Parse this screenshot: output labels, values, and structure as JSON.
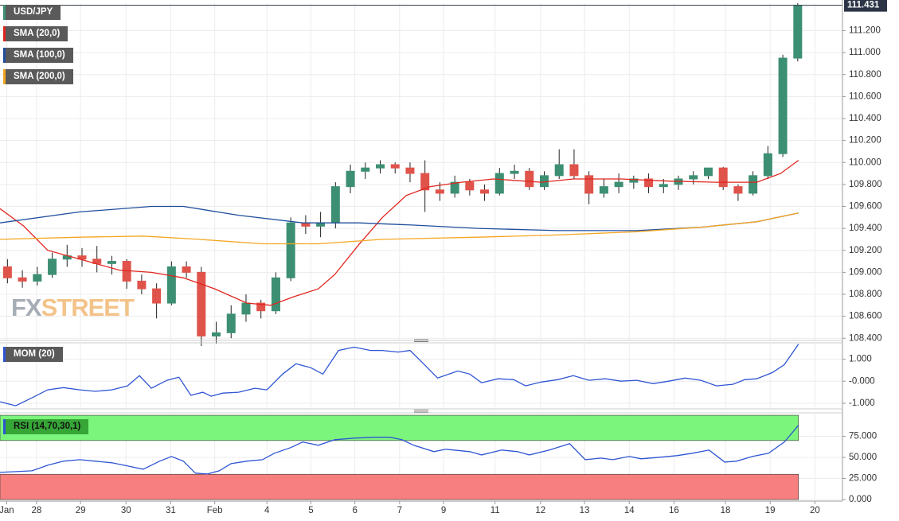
{
  "chart_data": [
    {
      "type": "candlestick",
      "title": "USD/JPY",
      "watermark": [
        "FX",
        "STREET"
      ],
      "up_color": "#3d8f73",
      "down_color": "#e0534a",
      "x": [
        1,
        3,
        5,
        7,
        9,
        11,
        13,
        15,
        17,
        19,
        21,
        23,
        25,
        27,
        29,
        31,
        33,
        35,
        37,
        39,
        41,
        43,
        45,
        47,
        49,
        51,
        53,
        55,
        57,
        59,
        61,
        63,
        65,
        67,
        69,
        71,
        73,
        75,
        77,
        79,
        81,
        83,
        85,
        87,
        89,
        91,
        93,
        95,
        97,
        99,
        101,
        103,
        105,
        107
      ],
      "open": [
        109.05,
        108.95,
        108.92,
        108.98,
        109.12,
        109.15,
        109.12,
        109.08,
        109.1,
        108.92,
        108.85,
        108.72,
        109.05,
        109.0,
        108.42,
        108.45,
        108.62,
        108.72,
        108.65,
        108.95,
        109.45,
        109.42,
        109.45,
        109.78,
        109.92,
        109.95,
        109.98,
        109.95,
        109.9,
        109.75,
        109.72,
        109.82,
        109.75,
        109.72,
        109.9,
        109.92,
        109.78,
        109.88,
        109.98,
        109.88,
        109.72,
        109.78,
        109.82,
        109.85,
        109.78,
        109.8,
        109.85,
        109.88,
        109.95,
        109.78,
        109.72,
        109.88,
        110.08,
        110.95
      ],
      "high": [
        109.12,
        109.02,
        109.05,
        109.18,
        109.25,
        109.22,
        109.24,
        109.15,
        109.12,
        108.98,
        108.9,
        109.1,
        109.1,
        109.05,
        108.55,
        108.7,
        108.8,
        108.75,
        109.0,
        109.5,
        109.52,
        109.55,
        109.82,
        109.98,
        110.0,
        110.02,
        110.0,
        110.0,
        110.02,
        109.82,
        109.88,
        109.85,
        109.8,
        109.95,
        109.98,
        109.95,
        109.92,
        110.12,
        110.12,
        109.92,
        109.85,
        109.9,
        109.88,
        109.9,
        109.85,
        109.88,
        109.92,
        109.95,
        109.96,
        109.8,
        109.92,
        110.15,
        110.98,
        111.45
      ],
      "low": [
        108.9,
        108.86,
        108.88,
        108.95,
        109.05,
        109.05,
        109.0,
        108.98,
        108.85,
        108.8,
        108.58,
        108.7,
        108.95,
        108.33,
        108.35,
        108.4,
        108.55,
        108.58,
        108.62,
        108.92,
        109.35,
        109.32,
        109.4,
        109.72,
        109.85,
        109.9,
        109.9,
        109.82,
        109.55,
        109.65,
        109.68,
        109.7,
        109.65,
        109.7,
        109.85,
        109.75,
        109.75,
        109.85,
        109.85,
        109.62,
        109.68,
        109.72,
        109.76,
        109.72,
        109.72,
        109.75,
        109.8,
        109.85,
        109.75,
        109.65,
        109.7,
        109.85,
        110.05,
        110.92
      ],
      "close": [
        108.95,
        108.92,
        108.98,
        109.12,
        109.15,
        109.12,
        109.08,
        109.1,
        108.92,
        108.85,
        108.72,
        109.05,
        109.0,
        108.42,
        108.45,
        108.62,
        108.72,
        108.65,
        108.95,
        109.45,
        109.42,
        109.45,
        109.78,
        109.92,
        109.95,
        109.98,
        109.95,
        109.9,
        109.75,
        109.72,
        109.82,
        109.75,
        109.72,
        109.9,
        109.92,
        109.78,
        109.88,
        109.98,
        109.88,
        109.72,
        109.78,
        109.82,
        109.85,
        109.78,
        109.8,
        109.85,
        109.88,
        109.95,
        109.78,
        109.72,
        109.88,
        110.08,
        110.95,
        111.43
      ],
      "series": [
        {
          "name": "SMA (20,0)",
          "color": "#e0261f",
          "x": [
            0,
            3.2,
            6.4,
            10.7,
            16.0,
            20.3,
            24.6,
            28.8,
            33.1,
            36.3,
            39.5,
            42.7,
            44.9,
            48.1,
            51.3,
            54.5,
            57.7,
            61.9,
            66.2,
            72.6,
            76.9,
            83.3,
            89.7,
            96.1,
            101.5,
            104.7,
            107.1
          ],
          "values": [
            109.58,
            109.42,
            109.2,
            109.12,
            109.02,
            109.0,
            108.95,
            108.85,
            108.72,
            108.7,
            108.78,
            108.85,
            108.98,
            109.25,
            109.5,
            109.7,
            109.78,
            109.82,
            109.85,
            109.82,
            109.85,
            109.85,
            109.83,
            109.82,
            109.82,
            109.9,
            110.02
          ]
        },
        {
          "name": "SMA (100,0)",
          "color": "#1f4e9c",
          "x": [
            0,
            10.7,
            20.3,
            24.6,
            32.0,
            40.6,
            48.1,
            55.5,
            64.1,
            74.8,
            85.4,
            94.0,
            101.5,
            107.1
          ],
          "values": [
            109.45,
            109.55,
            109.6,
            109.6,
            109.52,
            109.45,
            109.45,
            109.43,
            109.4,
            109.38,
            109.38,
            109.41,
            109.46,
            109.54
          ]
        },
        {
          "name": "SMA (200,0)",
          "color": "#f5a623",
          "x": [
            0,
            10.7,
            19.2,
            26.7,
            35.2,
            42.7,
            51.3,
            64.1,
            74.8,
            85.4,
            94.0,
            101.5,
            107.1
          ],
          "values": [
            109.3,
            109.32,
            109.33,
            109.3,
            109.26,
            109.26,
            109.3,
            109.32,
            109.34,
            109.37,
            109.41,
            109.46,
            109.54
          ]
        }
      ],
      "last_price": 111.431,
      "xlim": [
        0,
        113
      ],
      "xticks": [
        {
          "value": 0.9,
          "label": "Jan"
        },
        {
          "value": 4.9,
          "label": "28"
        },
        {
          "value": 10.8,
          "label": "29"
        },
        {
          "value": 16.9,
          "label": "30"
        },
        {
          "value": 22.9,
          "label": "31"
        },
        {
          "value": 28.8,
          "label": "Feb"
        },
        {
          "value": 35.8,
          "label": "4"
        },
        {
          "value": 41.7,
          "label": "5"
        },
        {
          "value": 47.6,
          "label": "6"
        },
        {
          "value": 53.6,
          "label": "7"
        },
        {
          "value": 59.5,
          "label": "9"
        },
        {
          "value": 66.4,
          "label": "11"
        },
        {
          "value": 72.5,
          "label": "12"
        },
        {
          "value": 78.4,
          "label": "13"
        },
        {
          "value": 84.4,
          "label": "14"
        },
        {
          "value": 90.4,
          "label": "16"
        },
        {
          "value": 97.3,
          "label": "18"
        },
        {
          "value": 103.3,
          "label": "19"
        },
        {
          "value": 109.3,
          "label": "20"
        }
      ],
      "ylim": [
        108.38,
        111.45
      ],
      "yticks": [
        {
          "value": 111.2,
          "label": "111.200"
        },
        {
          "value": 111.0,
          "label": "111.000"
        },
        {
          "value": 110.8,
          "label": "110.800"
        },
        {
          "value": 110.6,
          "label": "110.600"
        },
        {
          "value": 110.4,
          "label": "110.400"
        },
        {
          "value": 110.2,
          "label": "110.200"
        },
        {
          "value": 110.0,
          "label": "110.000"
        },
        {
          "value": 109.8,
          "label": "109.800"
        },
        {
          "value": 109.6,
          "label": "109.600"
        },
        {
          "value": 109.4,
          "label": "109.400"
        },
        {
          "value": 109.2,
          "label": "109.200"
        },
        {
          "value": 109.0,
          "label": "109.000"
        },
        {
          "value": 108.8,
          "label": "108.800"
        },
        {
          "value": 108.6,
          "label": "108.600"
        },
        {
          "value": 108.4,
          "label": "108.400"
        }
      ],
      "grid": true
    },
    {
      "type": "line",
      "series": [
        {
          "name": "MOM (20)",
          "color": "#2f55d4",
          "x": [
            0,
            2.1,
            4.3,
            6.4,
            8.5,
            10.7,
            12.8,
            15.0,
            17.1,
            18.7,
            20.3,
            22.4,
            24.0,
            25.6,
            27.2,
            28.3,
            29.9,
            32.0,
            34.2,
            35.8,
            37.9,
            39.7,
            41.7,
            43.3,
            45.4,
            47.5,
            49.7,
            51.3,
            53.4,
            55.0,
            56.6,
            58.7,
            61.4,
            63.0,
            64.6,
            66.8,
            68.9,
            70.5,
            72.6,
            74.8,
            76.9,
            79.0,
            81.2,
            83.3,
            85.4,
            87.6,
            89.7,
            91.9,
            94.0,
            96.1,
            98.3,
            99.9,
            101.5,
            103.6,
            105.2,
            107.1
          ],
          "values": [
            -0.93,
            -1.11,
            -0.75,
            -0.39,
            -0.29,
            -0.39,
            -0.46,
            -0.39,
            -0.21,
            0.25,
            -0.32,
            0.04,
            0.18,
            -0.64,
            -0.5,
            -0.68,
            -0.54,
            -0.5,
            -0.32,
            -0.39,
            0.32,
            0.79,
            0.61,
            0.32,
            1.39,
            1.54,
            1.39,
            1.39,
            1.32,
            1.39,
            0.86,
            0.14,
            0.46,
            0.32,
            -0.07,
            0.11,
            0.07,
            -0.21,
            -0.04,
            0.07,
            0.25,
            0.04,
            0.11,
            0,
            0.04,
            -0.11,
            0,
            0.14,
            0.04,
            -0.21,
            -0.14,
            0.07,
            0.11,
            0.39,
            0.75,
            1.68
          ]
        }
      ],
      "xlim": [
        0,
        113
      ],
      "ylim": [
        -1.18,
        1.7
      ],
      "yticks": [
        {
          "value": 1,
          "label": "1.000"
        },
        {
          "value": 0,
          "label": "-0.000"
        },
        {
          "value": -1,
          "label": "-1.000"
        }
      ],
      "grid": true
    },
    {
      "type": "line",
      "series": [
        {
          "name": "RSI (14,70,30,1)",
          "color": "#2f55d4",
          "x": [
            0,
            4.3,
            6.4,
            8.5,
            10.7,
            12.8,
            15.0,
            17.1,
            19.2,
            21.4,
            23.0,
            24.6,
            26.2,
            27.8,
            29.4,
            31.0,
            33.1,
            35.2,
            36.8,
            39.0,
            40.6,
            42.7,
            44.9,
            47.5,
            50.2,
            52.3,
            53.9,
            55.5,
            58.2,
            59.8,
            63.0,
            64.6,
            67.3,
            69.4,
            71.0,
            73.7,
            76.4,
            78.5,
            80.6,
            82.2,
            84.4,
            86.0,
            88.6,
            90.8,
            92.9,
            95.1,
            97.2,
            98.8,
            100.9,
            103.1,
            105.2,
            107.1
          ],
          "values": [
            32.2,
            34.1,
            40.7,
            45.5,
            47.3,
            45.5,
            43.6,
            39.8,
            36,
            45.5,
            51.1,
            45.5,
            31.3,
            30.3,
            34.1,
            42.6,
            45.5,
            47.3,
            54.9,
            61.6,
            68.2,
            64.4,
            71,
            72.9,
            73.9,
            73.9,
            71,
            64.4,
            56.8,
            59.7,
            56.8,
            53,
            58.7,
            56.8,
            53,
            58.7,
            66.3,
            47.3,
            49.2,
            47.3,
            51.1,
            48.3,
            50.2,
            52.1,
            54.9,
            58.7,
            44.5,
            45.5,
            51.1,
            54.9,
            68.2,
            88.1
          ]
        }
      ],
      "bands": [
        {
          "from": 70,
          "to": 100,
          "color": "#7cf57c"
        },
        {
          "from": 0,
          "to": 30,
          "color": "#f77f7f"
        }
      ],
      "band_end": 107.1,
      "xlim": [
        0,
        113
      ],
      "ylim": [
        0,
        101
      ],
      "yticks": [
        {
          "value": 75,
          "label": "75.000"
        },
        {
          "value": 50,
          "label": "50.000"
        },
        {
          "value": 25,
          "label": "25.000"
        },
        {
          "value": 0,
          "label": "0.000"
        }
      ],
      "grid": true
    }
  ]
}
